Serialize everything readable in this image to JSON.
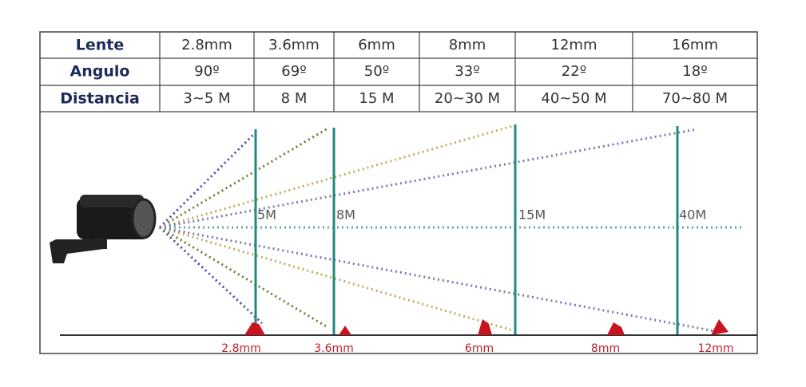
{
  "table": {
    "rows": [
      [
        "Lente",
        "2.8mm",
        "3.6mm",
        "6mm",
        "8mm",
        "12mm",
        "16mm"
      ],
      [
        "Angulo",
        "90º",
        "69º",
        "50º",
        "33º",
        "22º",
        "18º"
      ],
      [
        "Distancia",
        "3~5 M",
        "8 M",
        "15 M",
        "20~30 M",
        "40~50 M",
        "70~80 M"
      ]
    ]
  },
  "diagram": {
    "distance_labels": [
      "5M",
      "8M",
      "15M",
      "40M"
    ],
    "lens_labels": [
      "2.8mm",
      "3.6mm",
      "6mm",
      "8mm",
      "12mm"
    ]
  }
}
